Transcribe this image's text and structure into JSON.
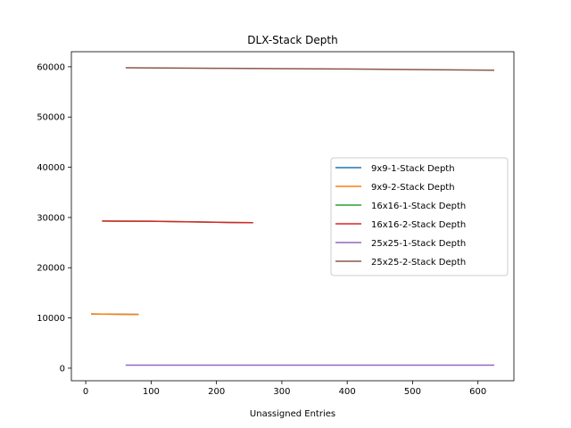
{
  "chart_data": {
    "type": "line",
    "title": "DLX-Stack Depth",
    "xlabel": "Unassigned Entries",
    "ylabel": "",
    "xlim": [
      -22,
      655
    ],
    "ylim": [
      -2500,
      63000
    ],
    "xticks": [
      0,
      100,
      200,
      300,
      400,
      500,
      600
    ],
    "yticks": [
      0,
      10000,
      20000,
      30000,
      40000,
      50000,
      60000
    ],
    "legend_position": "center-right",
    "grid": false,
    "series": [
      {
        "name": "9x9-1-Stack Depth",
        "color": "#1f77b4",
        "x": [
          8,
          81
        ],
        "y": [
          10800,
          10700
        ]
      },
      {
        "name": "9x9-2-Stack Depth",
        "color": "#ff7f0e",
        "x": [
          8,
          81
        ],
        "y": [
          10800,
          10700
        ]
      },
      {
        "name": "16x16-1-Stack Depth",
        "color": "#2ca02c",
        "x": [
          25,
          100,
          200,
          256
        ],
        "y": [
          29300,
          29250,
          29050,
          28950
        ]
      },
      {
        "name": "16x16-2-Stack Depth",
        "color": "#d62728",
        "x": [
          25,
          100,
          200,
          256
        ],
        "y": [
          29300,
          29250,
          29050,
          28950
        ]
      },
      {
        "name": "25x25-1-Stack Depth",
        "color": "#9467bd",
        "x": [
          61,
          200,
          400,
          625
        ],
        "y": [
          600,
          600,
          600,
          600
        ]
      },
      {
        "name": "25x25-2-Stack Depth",
        "color": "#8c564b",
        "x": [
          61,
          200,
          400,
          625
        ],
        "y": [
          59800,
          59700,
          59550,
          59300
        ]
      }
    ]
  }
}
